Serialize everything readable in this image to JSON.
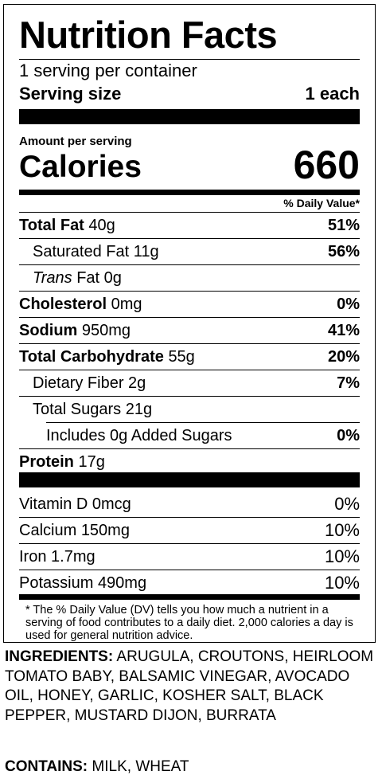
{
  "label": {
    "title": "Nutrition Facts",
    "servings": "1 serving per container",
    "serving_size_label": "Serving size",
    "serving_size_value": "1 each",
    "amount_per_serving": "Amount per serving",
    "calories_label": "Calories",
    "calories_value": "660",
    "daily_value_header": "% Daily Value*",
    "nutrients": [
      {
        "name": "Total Fat",
        "amount": "40g",
        "dv": "51%"
      },
      {
        "name": "Saturated Fat",
        "amount": "11g",
        "dv": "56%"
      },
      {
        "name": "Trans",
        "name_rest": "Fat",
        "amount": "0g",
        "dv": ""
      },
      {
        "name": "Cholesterol",
        "amount": "0mg",
        "dv": "0%"
      },
      {
        "name": "Sodium",
        "amount": "950mg",
        "dv": "41%"
      },
      {
        "name": "Total Carbohydrate",
        "amount": "55g",
        "dv": "20%"
      },
      {
        "name": "Dietary Fiber",
        "amount": "2g",
        "dv": "7%"
      },
      {
        "name": "Total Sugars",
        "amount": "21g",
        "dv": ""
      },
      {
        "name": "Includes 0g Added Sugars",
        "amount": "",
        "dv": "0%"
      },
      {
        "name": "Protein",
        "amount": "17g",
        "dv": ""
      }
    ],
    "vitamins": [
      {
        "name": "Vitamin D",
        "amount": "0mcg",
        "dv": "0%"
      },
      {
        "name": "Calcium",
        "amount": "150mg",
        "dv": "10%"
      },
      {
        "name": "Iron",
        "amount": "1.7mg",
        "dv": "10%"
      },
      {
        "name": "Potassium",
        "amount": "490mg",
        "dv": "10%"
      }
    ],
    "footnote": "* The % Daily Value (DV) tells you how much a nutrient in a serving of food contributes to a daily diet. 2,000 calories a day is used for general nutrition advice."
  },
  "ingredients": {
    "heading": "INGREDIENTS:",
    "text": "ARUGULA, CROUTONS, HEIRLOOM TOMATO BABY, BALSAMIC VINEGAR, AVOCADO OIL, HONEY, GARLIC, KOSHER SALT, BLACK PEPPER, MUSTARD DIJON, BURRATA"
  },
  "contains": {
    "heading": "CONTAINS:",
    "text": "MILK, WHEAT"
  }
}
